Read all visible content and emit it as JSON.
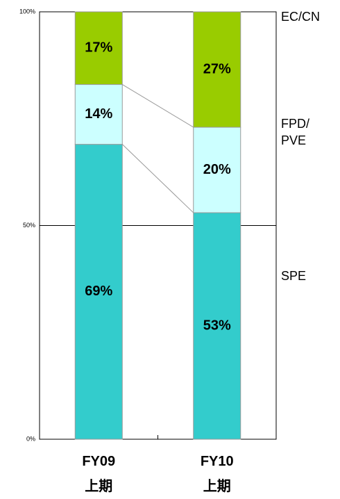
{
  "chart_data": {
    "type": "stacked_bar",
    "categories": [
      "FY09\n上期",
      "FY10\n上期"
    ],
    "series": [
      {
        "name": "SPE",
        "color": "#33cccc",
        "values": [
          69,
          53
        ],
        "value_labels": [
          "69%",
          "53%"
        ]
      },
      {
        "name": "FPD/\nPVE",
        "color": "#ccffff",
        "values": [
          14,
          20
        ],
        "value_labels": [
          "14%",
          "20%"
        ]
      },
      {
        "name": "EC/CN",
        "color": "#99cc00",
        "values": [
          17,
          27
        ],
        "value_labels": [
          "17%",
          "27%"
        ]
      }
    ],
    "ylim": [
      0,
      100
    ],
    "yticks": [
      {
        "value": 0,
        "label": "0%"
      },
      {
        "value": 50,
        "label": "50%"
      },
      {
        "value": 100,
        "label": "100%"
      }
    ],
    "grid": true
  }
}
